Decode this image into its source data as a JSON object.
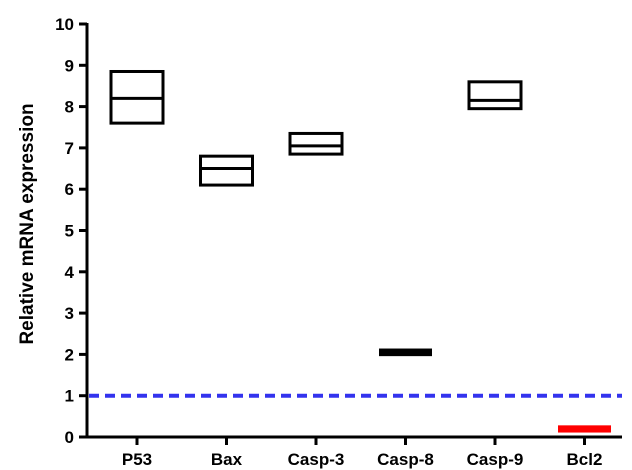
{
  "chart_data": {
    "type": "floating-bar",
    "ylabel": "Relative mRNA expression",
    "ylim": [
      0,
      10
    ],
    "yticks": [
      0,
      1,
      2,
      3,
      4,
      5,
      6,
      7,
      8,
      9,
      10
    ],
    "categories": [
      "P53",
      "Bax",
      "Casp-3",
      "Casp-8",
      "Casp-9",
      "Bcl2"
    ],
    "series": [
      {
        "values": [
          {
            "min": 7.6,
            "median": 8.2,
            "max": 8.85,
            "color": "#000000",
            "filled": false
          },
          {
            "min": 6.1,
            "median": 6.5,
            "max": 6.8,
            "color": "#000000",
            "filled": false
          },
          {
            "min": 6.85,
            "median": 7.05,
            "max": 7.35,
            "color": "#000000",
            "filled": false
          },
          {
            "min": 1.97,
            "median": 2.05,
            "max": 2.13,
            "color": "#000000",
            "filled": true
          },
          {
            "min": 7.95,
            "median": 8.15,
            "max": 8.6,
            "color": "#000000",
            "filled": false
          },
          {
            "min": 0.12,
            "median": 0.2,
            "max": 0.27,
            "color": "#ff0000",
            "filled": true
          }
        ]
      }
    ],
    "reference_line": {
      "y": 1,
      "color": "#3333ee",
      "style": "dashed"
    },
    "grid": false,
    "legend": "none"
  }
}
